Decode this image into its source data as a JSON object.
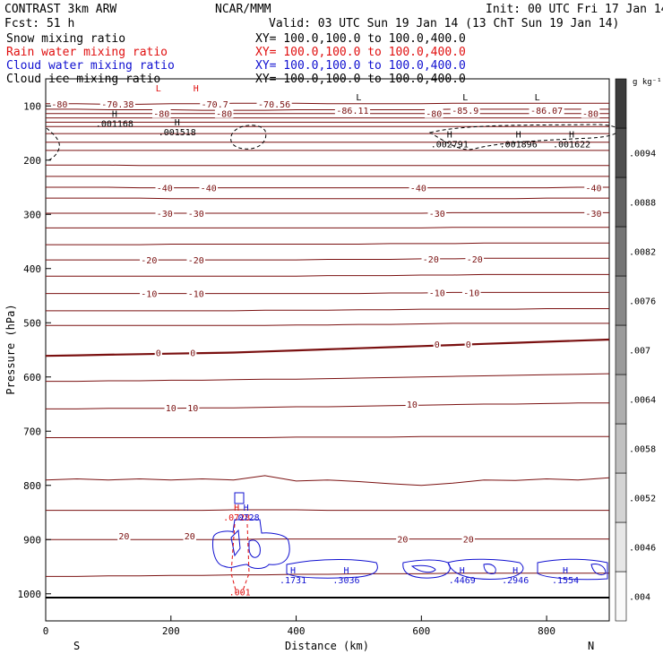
{
  "header": {
    "line1_left": "CONTRAST  3km ARW",
    "line1_mid": "NCAR/MMM",
    "line1_right": "Init: 00 UTC Fri 17 Jan 14",
    "line2_left": "Fcst:   51 h",
    "line2_right": "Valid: 03 UTC Sun 19 Jan 14 (13 ChT Sun 19 Jan 14)",
    "fields": [
      {
        "name": "Snow mixing ratio",
        "xy": "XY= 100.0,100.0 to 100.0,400.0",
        "color": "#000000"
      },
      {
        "name": "Rain water mixing ratio",
        "xy": "XY= 100.0,100.0 to 100.0,400.0",
        "color": "#e01010"
      },
      {
        "name": "Cloud water mixing ratio",
        "xy": "XY= 100.0,100.0 to 100.0,400.0",
        "color": "#1010d0"
      },
      {
        "name": "Cloud ice mixing ratio",
        "xy": "XY= 100.0,100.0 to 100.0,400.0",
        "color": "#000000"
      }
    ]
  },
  "chart_data": {
    "type": "contour-cross-section",
    "xlabel": "Distance (km)",
    "ylabel": "Pressure (hPa)",
    "xlim": [
      0,
      900
    ],
    "ylim": [
      1050,
      50
    ],
    "x_ticks": [
      0,
      200,
      400,
      600,
      800
    ],
    "y_ticks": [
      100,
      200,
      300,
      400,
      500,
      600,
      700,
      800,
      900,
      1000
    ],
    "x_end_labels": {
      "left": "S",
      "right": "N"
    },
    "colorbar": {
      "unit": "g kg⁻¹",
      "ticks": [
        ".004",
        ".0046",
        ".0052",
        ".0058",
        ".0064",
        ".007",
        ".0076",
        ".0082",
        ".0088",
        ".0094"
      ]
    },
    "temperature_contours": [
      {
        "p": [
          96,
          96,
          97,
          97,
          96,
          96,
          95,
          95,
          95,
          96,
          96,
          96,
          96,
          95,
          95,
          95,
          95,
          95,
          95
        ]
      },
      {
        "p": [
          106,
          106,
          107,
          107,
          107,
          108,
          108,
          108,
          107,
          107,
          107,
          107,
          107,
          106,
          106,
          106,
          106,
          106,
          106
        ]
      },
      {
        "p": [
          114,
          114,
          114,
          114,
          114,
          114,
          114,
          114,
          114,
          114,
          114,
          114,
          114,
          114,
          114,
          114,
          114,
          114,
          114
        ]
      },
      {
        "p": [
          122,
          122,
          122,
          122,
          122,
          122,
          122,
          122,
          122,
          122,
          122,
          122,
          122,
          122,
          122,
          122,
          122,
          122,
          122
        ]
      },
      {
        "p": [
          130,
          130,
          130,
          130,
          130,
          130,
          130,
          130,
          130,
          130,
          130,
          130,
          130,
          130,
          130,
          130,
          130,
          130,
          130
        ]
      },
      {
        "p": [
          138,
          138,
          138,
          138,
          138,
          138,
          138,
          138,
          138,
          138,
          138,
          138,
          138,
          138,
          138,
          138,
          138,
          138,
          138
        ]
      },
      {
        "p": [
          151,
          151,
          151,
          151,
          151,
          151,
          151,
          151,
          151,
          151,
          151,
          151,
          151,
          151,
          151,
          151,
          151,
          151,
          151
        ]
      },
      {
        "p": [
          167,
          167,
          167,
          167,
          167,
          167,
          167,
          167,
          167,
          167,
          167,
          167,
          167,
          167,
          167,
          167,
          167,
          167,
          167
        ]
      },
      {
        "p": [
          182,
          182,
          182,
          182,
          182,
          182,
          182,
          182,
          182,
          182,
          182,
          182,
          182,
          182,
          182,
          182,
          182,
          182,
          182
        ]
      },
      {
        "p": [
          209,
          209,
          209,
          210,
          210,
          210,
          210,
          210,
          210,
          210,
          210,
          210,
          210,
          210,
          210,
          210,
          210,
          210,
          210
        ]
      },
      {
        "p": [
          230,
          230,
          230,
          230,
          230,
          230,
          230,
          230,
          230,
          230,
          230,
          230,
          230,
          230,
          230,
          230,
          230,
          230,
          230
        ]
      },
      {
        "p": [
          250,
          250,
          250,
          251,
          251,
          251,
          251,
          251,
          251,
          251,
          251,
          251,
          251,
          251,
          251,
          251,
          251,
          250,
          250
        ]
      },
      {
        "p": [
          270,
          270,
          270,
          270,
          271,
          271,
          271,
          271,
          271,
          271,
          271,
          271,
          271,
          271,
          271,
          271,
          270,
          270,
          270
        ]
      },
      {
        "p": [
          298,
          298,
          298,
          298,
          298,
          298,
          298,
          298,
          298,
          298,
          298,
          298,
          298,
          297,
          297,
          297,
          297,
          297,
          297
        ]
      },
      {
        "p": [
          325,
          325,
          325,
          325,
          325,
          325,
          325,
          325,
          325,
          325,
          325,
          325,
          325,
          324,
          324,
          324,
          324,
          324,
          324
        ]
      },
      {
        "p": [
          356,
          356,
          356,
          356,
          355,
          355,
          355,
          355,
          355,
          355,
          355,
          354,
          354,
          354,
          353,
          353,
          353,
          353,
          353
        ]
      },
      {
        "p": [
          384,
          384,
          384,
          384,
          384,
          384,
          384,
          384,
          384,
          383,
          383,
          383,
          382,
          382,
          381,
          381,
          381,
          381,
          381
        ]
      },
      {
        "p": [
          414,
          414,
          414,
          414,
          414,
          414,
          414,
          414,
          414,
          413,
          413,
          413,
          412,
          412,
          411,
          411,
          411,
          411,
          411
        ]
      },
      {
        "p": [
          446,
          446,
          446,
          446,
          446,
          446,
          446,
          446,
          446,
          446,
          446,
          445,
          445,
          444,
          444,
          444,
          444,
          444,
          444
        ]
      },
      {
        "p": [
          478,
          478,
          478,
          478,
          478,
          478,
          478,
          477,
          477,
          477,
          476,
          476,
          475,
          475,
          475,
          475,
          474,
          474,
          474
        ]
      },
      {
        "p": [
          505,
          505,
          505,
          505,
          505,
          505,
          505,
          505,
          504,
          504,
          503,
          503,
          502,
          501,
          501,
          501,
          501,
          501,
          501
        ]
      },
      {
        "p": [
          561,
          560,
          559,
          558,
          557,
          556,
          555,
          553,
          551,
          549,
          547,
          545,
          543,
          541,
          539,
          537,
          535,
          533,
          531
        ]
      },
      {
        "p": [
          608,
          608,
          607,
          607,
          606,
          606,
          605,
          604,
          604,
          603,
          602,
          601,
          600,
          599,
          598,
          597,
          596,
          595,
          594
        ]
      },
      {
        "p": [
          659,
          659,
          658,
          658,
          658,
          657,
          657,
          656,
          655,
          655,
          654,
          653,
          652,
          651,
          650,
          650,
          649,
          648,
          648
        ]
      },
      {
        "p": [
          712,
          712,
          712,
          712,
          712,
          712,
          712,
          712,
          711,
          711,
          711,
          711,
          710,
          710,
          710,
          710,
          710,
          710,
          710
        ]
      },
      {
        "p": [
          790,
          788,
          790,
          788,
          790,
          788,
          790,
          782,
          792,
          790,
          793,
          797,
          800,
          796,
          790,
          791,
          788,
          790,
          786
        ]
      },
      {
        "p": [
          846,
          846,
          846,
          846,
          846,
          846,
          845,
          845,
          845,
          846,
          846,
          846,
          846,
          846,
          846,
          846,
          846,
          846,
          846
        ]
      },
      {
        "p": [
          900,
          900,
          900,
          900,
          900,
          900,
          900,
          899,
          899,
          899,
          899,
          899,
          899,
          899,
          899,
          899,
          899,
          899,
          899
        ]
      },
      {
        "p": [
          968,
          968,
          967,
          967,
          966,
          966,
          965,
          965,
          964,
          964,
          963,
          963,
          963,
          962,
          962,
          962,
          962,
          962,
          962
        ]
      }
    ],
    "temperature_labels": [
      {
        "text": "-80",
        "x": 22,
        "p": 96
      },
      {
        "text": "-70.38",
        "x": 115,
        "p": 96
      },
      {
        "text": "-70.7",
        "x": 270,
        "p": 96
      },
      {
        "text": "-70.56",
        "x": 365,
        "p": 96
      },
      {
        "text": "-86.11",
        "x": 490,
        "p": 108
      },
      {
        "text": "-85.9",
        "x": 670,
        "p": 108
      },
      {
        "text": "-86.07",
        "x": 800,
        "p": 108
      },
      {
        "text": "-80",
        "x": 185,
        "p": 114
      },
      {
        "text": "-80",
        "x": 285,
        "p": 114
      },
      {
        "text": "-80",
        "x": 620,
        "p": 114
      },
      {
        "text": "-80",
        "x": 870,
        "p": 114
      },
      {
        "text": "-40",
        "x": 190,
        "p": 251
      },
      {
        "text": "-40",
        "x": 260,
        "p": 251
      },
      {
        "text": "-40",
        "x": 595,
        "p": 251
      },
      {
        "text": "-40",
        "x": 875,
        "p": 251
      },
      {
        "text": "-30",
        "x": 190,
        "p": 298
      },
      {
        "text": "-30",
        "x": 240,
        "p": 298
      },
      {
        "text": "-30",
        "x": 625,
        "p": 298
      },
      {
        "text": "-30",
        "x": 875,
        "p": 298
      },
      {
        "text": "-20",
        "x": 165,
        "p": 384
      },
      {
        "text": "-20",
        "x": 240,
        "p": 384
      },
      {
        "text": "-20",
        "x": 615,
        "p": 382
      },
      {
        "text": "-20",
        "x": 685,
        "p": 382
      },
      {
        "text": "-10",
        "x": 165,
        "p": 446
      },
      {
        "text": "-10",
        "x": 240,
        "p": 446
      },
      {
        "text": "-10",
        "x": 625,
        "p": 444
      },
      {
        "text": "-10",
        "x": 680,
        "p": 444
      },
      {
        "text": "0",
        "x": 180,
        "p": 555
      },
      {
        "text": "0",
        "x": 235,
        "p": 555
      },
      {
        "text": "0",
        "x": 625,
        "p": 539
      },
      {
        "text": "0",
        "x": 675,
        "p": 539
      },
      {
        "text": "10",
        "x": 200,
        "p": 657
      },
      {
        "text": "10",
        "x": 235,
        "p": 657
      },
      {
        "text": "10",
        "x": 585,
        "p": 650
      },
      {
        "text": "20",
        "x": 125,
        "p": 893
      },
      {
        "text": "20",
        "x": 230,
        "p": 893
      },
      {
        "text": "20",
        "x": 570,
        "p": 899
      },
      {
        "text": "20",
        "x": 675,
        "p": 899
      }
    ],
    "extrema": [
      {
        "kind": "H",
        "value": ".001168",
        "x": 110,
        "p": 120,
        "color": "#000000"
      },
      {
        "kind": "H",
        "value": ".001518",
        "x": 210,
        "p": 136,
        "color": "#000000"
      },
      {
        "kind": "H",
        "value": ".002791",
        "x": 645,
        "p": 158,
        "color": "#000000"
      },
      {
        "kind": "H",
        "value": ".001896",
        "x": 755,
        "p": 158,
        "color": "#000000"
      },
      {
        "kind": "H",
        "value": ".001622",
        "x": 840,
        "p": 158,
        "color": "#000000"
      },
      {
        "kind": "H",
        "value": ".1731",
        "x": 395,
        "p": 962,
        "color": "#1010d0"
      },
      {
        "kind": "H",
        "value": ".3036",
        "x": 480,
        "p": 962,
        "color": "#1010d0"
      },
      {
        "kind": "H",
        "value": ".4469",
        "x": 665,
        "p": 962,
        "color": "#1010d0"
      },
      {
        "kind": "H",
        "value": ".2946",
        "x": 750,
        "p": 962,
        "color": "#1010d0"
      },
      {
        "kind": "H",
        "value": ".1554",
        "x": 830,
        "p": 962,
        "color": "#1010d0"
      },
      {
        "kind": "H",
        "value": ".0728",
        "x": 305,
        "p": 847,
        "color": "#e01010"
      },
      {
        "kind": "H",
        "value": ".0728",
        "x": 320,
        "p": 847,
        "color": "#1010d0"
      },
      {
        "kind": "L",
        "value": "",
        "x": 180,
        "p": 73,
        "color": "#e01010"
      },
      {
        "kind": "H",
        "value": "",
        "x": 240,
        "p": 73,
        "color": "#e01010"
      },
      {
        "kind": "L",
        "value": "",
        "x": 500,
        "p": 90,
        "color": "#000000"
      },
      {
        "kind": "L",
        "value": "",
        "x": 670,
        "p": 90,
        "color": "#000000"
      },
      {
        "kind": "L",
        "value": "",
        "x": 785,
        "p": 90,
        "color": "#000000"
      }
    ],
    "rain_annotation": {
      "text": ".001",
      "x": 310,
      "p": 1003
    }
  }
}
